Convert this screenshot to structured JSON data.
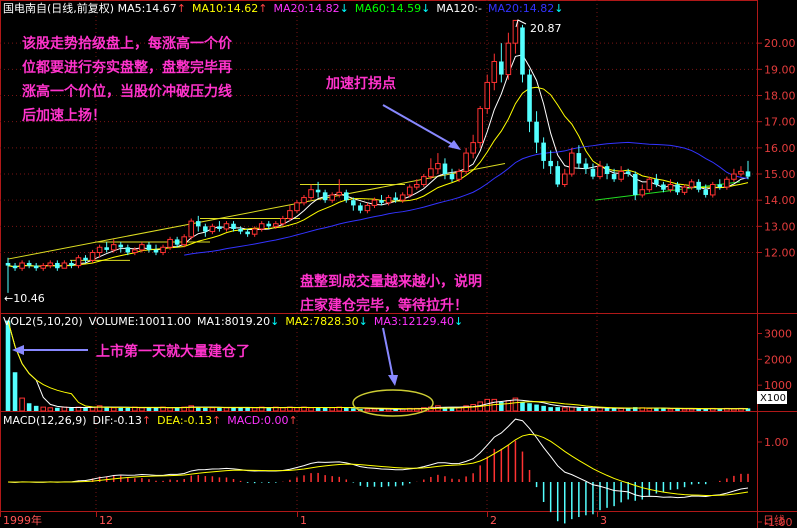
{
  "header": {
    "title": "国电南自(日线,前复权)",
    "ma": [
      {
        "label": "MA5:14.67",
        "arrow": "↑",
        "color": "#ffffff",
        "arrow_color": "#ff4444"
      },
      {
        "label": "MA10:14.62",
        "arrow": "↑",
        "color": "#ffff00",
        "arrow_color": "#ff4444"
      },
      {
        "label": "MA20:14.82",
        "arrow": "↓",
        "color": "#ff33ff",
        "arrow_color": "#00ffff"
      },
      {
        "label": "MA60:14.59",
        "arrow": "↓",
        "color": "#00ff00",
        "arrow_color": "#00ffff"
      },
      {
        "label": "MA120:-",
        "arrow": "",
        "color": "#ffffff",
        "arrow_color": "#ffffff"
      },
      {
        "label": "MA20:14.82",
        "arrow": "↓",
        "color": "#3333ff",
        "arrow_color": "#00ffff"
      }
    ]
  },
  "vol_header": [
    {
      "label": "VOL2(5,10,20)",
      "arrow": "",
      "color": "#ffffff",
      "arrow_color": "#fff"
    },
    {
      "label": "VOLUME:10011.00",
      "arrow": "",
      "color": "#ffffff",
      "arrow_color": "#fff"
    },
    {
      "label": "MA1:8019.20",
      "arrow": "↓",
      "color": "#ffffff",
      "arrow_color": "#00ffff"
    },
    {
      "label": "MA2:7828.30",
      "arrow": "↓",
      "color": "#ffff00",
      "arrow_color": "#00ffff"
    },
    {
      "label": "MA3:12129.40",
      "arrow": "↓",
      "color": "#ff33ff",
      "arrow_color": "#00ffff"
    }
  ],
  "macd_header": [
    {
      "label": "MACD(12,26,9)",
      "arrow": "",
      "color": "#ffffff",
      "arrow_color": "#fff"
    },
    {
      "label": "DIF:-0.13",
      "arrow": "↑",
      "color": "#ffffff",
      "arrow_color": "#ff4444"
    },
    {
      "label": "DEA:-0.13",
      "arrow": "↑",
      "color": "#ffff00",
      "arrow_color": "#ff4444"
    },
    {
      "label": "MACD:0.00",
      "arrow": "↑",
      "color": "#ff33ff",
      "arrow_color": "#ff4444"
    }
  ],
  "annotations": {
    "note1": [
      "该股走势拾级盘上，每涨高一个价",
      "位都要进行夯实盘整，盘整完毕再",
      "涨高一个价位，当股价冲破压力线",
      "后加速上扬！"
    ],
    "note2": "加速打拐点",
    "note3": [
      "盘整到成交量越来越小，说明",
      "庄家建仓完毕，等待拉升！"
    ],
    "note4": "上市第一天就大量建仓了",
    "high_label": "20.87",
    "low_label": "←10.46"
  },
  "vol_scale_label": "X100",
  "chart_data": {
    "type": "candlestick",
    "title": "国电南自(日线,前复权)",
    "price_ylim": [
      10.3,
      21.0
    ],
    "price_ticks": [
      12.0,
      13.0,
      14.0,
      15.0,
      16.0,
      17.0,
      18.0,
      19.0,
      20.0
    ],
    "vol_ticks": [
      1000,
      2000,
      3000
    ],
    "macd_ticks": [
      1.0,
      -1.0
    ],
    "x_tick_labels": [
      "1999年",
      "12",
      "1",
      "2",
      "3",
      "日线"
    ],
    "high_value": 20.87,
    "low_value": 10.46,
    "candles": [
      [
        11.6,
        11.5,
        11.8,
        10.46,
        140
      ],
      [
        11.5,
        11.4,
        11.6,
        11.3,
        60
      ],
      [
        11.4,
        11.6,
        11.7,
        11.3,
        20
      ],
      [
        11.6,
        11.5,
        11.7,
        11.4,
        12
      ],
      [
        11.5,
        11.4,
        11.6,
        11.3,
        8
      ],
      [
        11.4,
        11.5,
        11.6,
        11.3,
        6
      ],
      [
        11.5,
        11.6,
        11.7,
        11.4,
        5
      ],
      [
        11.6,
        11.4,
        11.7,
        11.3,
        5
      ],
      [
        11.4,
        11.6,
        11.7,
        11.4,
        6
      ],
      [
        11.6,
        11.5,
        11.7,
        11.4,
        5
      ],
      [
        11.5,
        11.8,
        11.9,
        11.4,
        6
      ],
      [
        11.8,
        11.7,
        11.9,
        11.6,
        5
      ],
      [
        11.7,
        12.0,
        12.1,
        11.6,
        6
      ],
      [
        12.0,
        12.2,
        12.3,
        11.8,
        8
      ],
      [
        12.2,
        12.1,
        12.4,
        12.0,
        6
      ],
      [
        12.1,
        12.3,
        12.5,
        12.0,
        5
      ],
      [
        12.3,
        12.2,
        12.4,
        12.0,
        5
      ],
      [
        12.2,
        12.0,
        12.3,
        11.9,
        5
      ],
      [
        12.0,
        12.1,
        12.2,
        11.9,
        6
      ],
      [
        12.1,
        12.3,
        12.4,
        12.0,
        5
      ],
      [
        12.3,
        12.1,
        12.4,
        12.0,
        5
      ],
      [
        12.1,
        12.0,
        12.3,
        11.9,
        5
      ],
      [
        12.0,
        12.2,
        12.3,
        11.9,
        6
      ],
      [
        12.2,
        12.5,
        12.6,
        12.1,
        5
      ],
      [
        12.5,
        12.3,
        12.6,
        12.2,
        5
      ],
      [
        12.3,
        12.6,
        12.7,
        12.2,
        6
      ],
      [
        12.6,
        13.2,
        13.3,
        12.5,
        8
      ],
      [
        13.2,
        13.0,
        13.4,
        12.8,
        6
      ],
      [
        13.0,
        12.8,
        13.1,
        12.6,
        5
      ],
      [
        12.8,
        13.0,
        13.1,
        12.7,
        5
      ],
      [
        13.0,
        12.9,
        13.2,
        12.8,
        5
      ],
      [
        12.9,
        13.1,
        13.2,
        12.8,
        5
      ],
      [
        13.1,
        12.9,
        13.2,
        12.8,
        6
      ],
      [
        12.9,
        12.8,
        13.0,
        12.7,
        5
      ],
      [
        12.8,
        12.7,
        12.9,
        12.6,
        5
      ],
      [
        12.7,
        12.9,
        13.0,
        12.6,
        5
      ],
      [
        12.9,
        13.1,
        13.2,
        12.8,
        6
      ],
      [
        13.1,
        13.0,
        13.2,
        12.9,
        5
      ],
      [
        13.0,
        13.1,
        13.2,
        12.9,
        6
      ],
      [
        13.1,
        13.3,
        13.4,
        13.0,
        5
      ],
      [
        13.3,
        13.6,
        13.8,
        13.2,
        6
      ],
      [
        13.6,
        13.9,
        14.0,
        13.5,
        5
      ],
      [
        13.9,
        14.1,
        14.2,
        13.8,
        6
      ],
      [
        14.1,
        14.4,
        14.6,
        14.0,
        5
      ],
      [
        14.4,
        14.3,
        14.7,
        14.1,
        5
      ],
      [
        14.3,
        14.0,
        14.4,
        13.9,
        6
      ],
      [
        14.0,
        14.2,
        14.3,
        13.9,
        5
      ],
      [
        14.2,
        14.3,
        14.8,
        14.1,
        6
      ],
      [
        14.3,
        14.0,
        14.4,
        13.9,
        5
      ],
      [
        14.0,
        13.8,
        14.1,
        13.6,
        4
      ],
      [
        13.8,
        13.6,
        13.9,
        13.5,
        3
      ],
      [
        13.6,
        13.8,
        13.9,
        13.5,
        3
      ],
      [
        13.8,
        14.0,
        14.1,
        13.7,
        3
      ],
      [
        14.0,
        13.9,
        14.2,
        13.8,
        3
      ],
      [
        13.9,
        14.1,
        14.2,
        13.8,
        3
      ],
      [
        14.1,
        14.0,
        14.3,
        13.9,
        3
      ],
      [
        14.0,
        14.2,
        14.3,
        13.9,
        3
      ],
      [
        14.2,
        14.5,
        14.6,
        14.1,
        4
      ],
      [
        14.5,
        14.6,
        14.8,
        14.4,
        4
      ],
      [
        14.6,
        14.9,
        15.0,
        14.5,
        5
      ],
      [
        14.9,
        15.2,
        15.6,
        14.8,
        6
      ],
      [
        15.2,
        15.4,
        15.8,
        15.0,
        8
      ],
      [
        15.4,
        15.0,
        15.6,
        14.8,
        6
      ],
      [
        15.0,
        14.8,
        15.2,
        14.7,
        5
      ],
      [
        14.8,
        15.1,
        15.2,
        14.7,
        5
      ],
      [
        15.1,
        15.8,
        16.0,
        15.0,
        8
      ],
      [
        15.8,
        16.2,
        16.5,
        15.6,
        10
      ],
      [
        16.2,
        17.5,
        17.6,
        16.0,
        14
      ],
      [
        17.5,
        18.5,
        18.8,
        17.3,
        18
      ],
      [
        18.5,
        19.3,
        19.6,
        18.2,
        18
      ],
      [
        19.3,
        18.8,
        20.0,
        18.5,
        14
      ],
      [
        18.8,
        20.0,
        20.4,
        18.6,
        16
      ],
      [
        20.0,
        20.87,
        20.87,
        19.6,
        20
      ],
      [
        20.6,
        18.8,
        20.7,
        18.5,
        14
      ],
      [
        18.8,
        17.0,
        19.0,
        16.6,
        12
      ],
      [
        17.0,
        16.2,
        17.4,
        15.8,
        10
      ],
      [
        16.2,
        15.5,
        16.4,
        15.2,
        8
      ],
      [
        15.5,
        15.3,
        15.9,
        15.0,
        6
      ],
      [
        15.3,
        14.6,
        15.5,
        14.5,
        6
      ],
      [
        14.6,
        15.0,
        15.2,
        14.5,
        5
      ],
      [
        15.0,
        15.8,
        16.0,
        14.9,
        6
      ],
      [
        15.8,
        15.4,
        16.1,
        15.2,
        5
      ],
      [
        15.4,
        15.2,
        15.6,
        15.0,
        5
      ],
      [
        15.2,
        14.9,
        15.4,
        14.8,
        4
      ],
      [
        14.9,
        15.3,
        15.5,
        14.8,
        5
      ],
      [
        15.3,
        15.0,
        15.4,
        14.8,
        4
      ],
      [
        15.0,
        14.8,
        15.2,
        14.7,
        4
      ],
      [
        14.8,
        15.1,
        15.3,
        14.7,
        4
      ],
      [
        15.1,
        15.0,
        15.2,
        14.9,
        4
      ],
      [
        15.0,
        14.2,
        15.1,
        14.0,
        6
      ],
      [
        14.2,
        14.4,
        14.6,
        14.1,
        5
      ],
      [
        14.4,
        14.8,
        14.9,
        14.3,
        4
      ],
      [
        14.8,
        14.6,
        15.0,
        14.5,
        4
      ],
      [
        14.6,
        14.4,
        14.7,
        14.3,
        4
      ],
      [
        14.4,
        14.6,
        14.8,
        14.3,
        3
      ],
      [
        14.6,
        14.3,
        14.7,
        14.2,
        4
      ],
      [
        14.3,
        14.5,
        14.6,
        14.2,
        3
      ],
      [
        14.5,
        14.7,
        14.8,
        14.4,
        3
      ],
      [
        14.7,
        14.4,
        14.8,
        14.3,
        3
      ],
      [
        14.4,
        14.2,
        14.6,
        14.1,
        4
      ],
      [
        14.2,
        14.6,
        14.7,
        14.1,
        4
      ],
      [
        14.6,
        14.5,
        14.8,
        14.4,
        3
      ],
      [
        14.5,
        14.8,
        14.9,
        14.4,
        4
      ],
      [
        14.8,
        15.0,
        15.2,
        14.7,
        3
      ],
      [
        15.0,
        15.1,
        15.3,
        14.9,
        4
      ],
      [
        15.1,
        14.9,
        15.5,
        14.8,
        4
      ]
    ]
  }
}
